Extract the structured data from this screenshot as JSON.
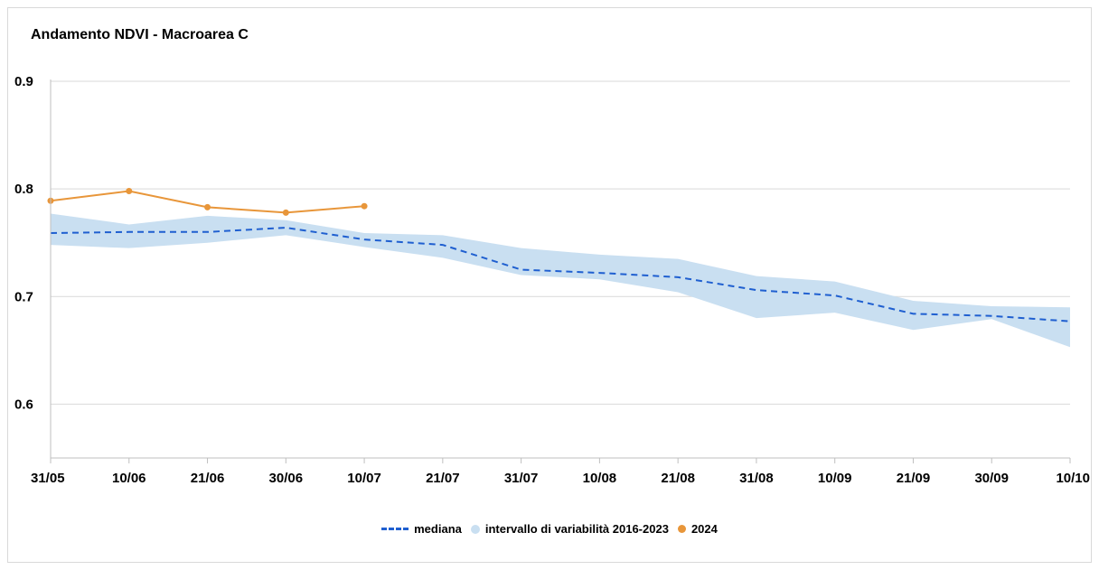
{
  "chart_data": {
    "type": "line",
    "title": "Andamento NDVI - Macroarea C",
    "categories": [
      "31/05",
      "10/06",
      "21/06",
      "30/06",
      "10/07",
      "21/07",
      "31/07",
      "10/08",
      "21/08",
      "31/08",
      "10/09",
      "21/09",
      "30/09",
      "10/10"
    ],
    "ylim": [
      0.55,
      0.9
    ],
    "yticks": [
      "0.9",
      "0.8",
      "0.7",
      "0.6"
    ],
    "ytick_values": [
      0.9,
      0.8,
      0.7,
      0.6
    ],
    "grid": true,
    "legend_position": "bottom",
    "series": [
      {
        "name": "mediana",
        "style": "dashed",
        "color": "#1f5fd0",
        "values": [
          0.759,
          0.76,
          0.76,
          0.764,
          0.753,
          0.748,
          0.725,
          0.722,
          0.718,
          0.706,
          0.701,
          0.684,
          0.682,
          0.677
        ]
      },
      {
        "name": "intervallo di variabilità 2016-2023",
        "style": "band",
        "color": "#c9dff1",
        "upper": [
          0.777,
          0.767,
          0.775,
          0.771,
          0.759,
          0.757,
          0.745,
          0.739,
          0.735,
          0.719,
          0.714,
          0.696,
          0.691,
          0.69
        ],
        "lower": [
          0.748,
          0.745,
          0.75,
          0.757,
          0.746,
          0.736,
          0.72,
          0.716,
          0.704,
          0.68,
          0.685,
          0.669,
          0.679,
          0.653
        ]
      },
      {
        "name": "2024",
        "style": "line-markers",
        "color": "#e8963a",
        "values": [
          0.789,
          0.798,
          0.783,
          0.778,
          0.784,
          null,
          null,
          null,
          null,
          null,
          null,
          null,
          null,
          null
        ]
      }
    ]
  }
}
